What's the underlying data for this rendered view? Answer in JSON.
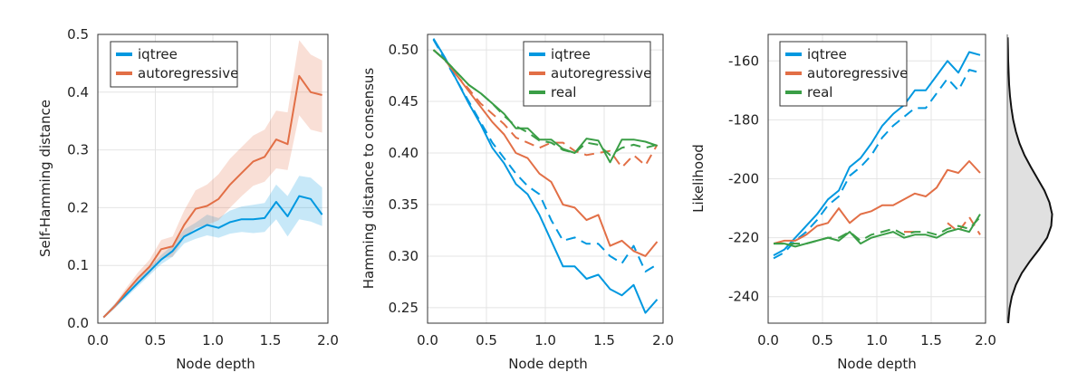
{
  "chart_data": [
    {
      "type": "line",
      "xlabel": "Node depth",
      "ylabel": "Self-Hamming distance",
      "xlim": [
        0.0,
        2.0
      ],
      "ylim": [
        0.0,
        0.5
      ],
      "xticks": [
        "0.0",
        "0.5",
        "1.0",
        "1.5",
        "2.0"
      ],
      "yticks": [
        "0.0",
        "0.1",
        "0.2",
        "0.3",
        "0.4",
        "0.5"
      ],
      "xtick_values": [
        0.0,
        0.5,
        1.0,
        1.5,
        2.0
      ],
      "ytick_values": [
        0.0,
        0.1,
        0.2,
        0.3,
        0.4,
        0.5
      ],
      "legend_position": "top-left",
      "x": [
        0.05,
        0.15,
        0.25,
        0.35,
        0.45,
        0.55,
        0.65,
        0.75,
        0.85,
        0.95,
        1.05,
        1.15,
        1.25,
        1.35,
        1.45,
        1.55,
        1.65,
        1.75,
        1.85,
        1.95
      ],
      "series": [
        {
          "name": "iqtree",
          "color": "#0098e0",
          "style": "solid",
          "values": [
            0.01,
            0.03,
            0.05,
            0.07,
            0.09,
            0.11,
            0.125,
            0.15,
            0.16,
            0.17,
            0.165,
            0.175,
            0.18,
            0.18,
            0.182,
            0.21,
            0.185,
            0.22,
            0.215,
            0.188
          ],
          "lower": [
            0.008,
            0.026,
            0.045,
            0.064,
            0.083,
            0.102,
            0.115,
            0.138,
            0.146,
            0.152,
            0.148,
            0.155,
            0.158,
            0.156,
            0.158,
            0.18,
            0.15,
            0.18,
            0.176,
            0.168
          ],
          "upper": [
            0.012,
            0.034,
            0.055,
            0.076,
            0.097,
            0.118,
            0.135,
            0.162,
            0.174,
            0.188,
            0.182,
            0.195,
            0.202,
            0.205,
            0.208,
            0.24,
            0.22,
            0.255,
            0.252,
            0.235
          ]
        },
        {
          "name": "autoregressive",
          "color": "#e26f46",
          "style": "solid",
          "values": [
            0.01,
            0.03,
            0.055,
            0.078,
            0.098,
            0.128,
            0.133,
            0.17,
            0.198,
            0.203,
            0.215,
            0.24,
            0.26,
            0.28,
            0.288,
            0.318,
            0.31,
            0.428,
            0.4,
            0.395
          ],
          "lower": [
            0.008,
            0.026,
            0.048,
            0.068,
            0.086,
            0.112,
            0.115,
            0.148,
            0.165,
            0.17,
            0.178,
            0.2,
            0.22,
            0.238,
            0.245,
            0.268,
            0.265,
            0.36,
            0.335,
            0.33
          ],
          "upper": [
            0.012,
            0.034,
            0.062,
            0.088,
            0.11,
            0.144,
            0.15,
            0.195,
            0.23,
            0.24,
            0.258,
            0.285,
            0.305,
            0.325,
            0.335,
            0.368,
            0.365,
            0.49,
            0.465,
            0.455
          ]
        }
      ]
    },
    {
      "type": "line",
      "xlabel": "Node depth",
      "ylabel": "Hamming distance to consensus",
      "xlim": [
        0.0,
        2.0
      ],
      "ylim": [
        0.235,
        0.515
      ],
      "xticks": [
        "0.0",
        "0.5",
        "1.0",
        "1.5",
        "2.0"
      ],
      "yticks": [
        "0.25",
        "0.30",
        "0.35",
        "0.40",
        "0.45",
        "0.50"
      ],
      "xtick_values": [
        0.0,
        0.5,
        1.0,
        1.5,
        2.0
      ],
      "ytick_values": [
        0.25,
        0.3,
        0.35,
        0.4,
        0.45,
        0.5
      ],
      "legend_position": "top-right",
      "x": [
        0.05,
        0.15,
        0.25,
        0.35,
        0.45,
        0.55,
        0.65,
        0.75,
        0.85,
        0.95,
        1.05,
        1.15,
        1.25,
        1.35,
        1.45,
        1.55,
        1.65,
        1.75,
        1.85,
        1.95
      ],
      "series": [
        {
          "name": "iqtree",
          "color": "#0098e0",
          "style": "solid",
          "values": [
            0.511,
            0.492,
            0.47,
            0.448,
            0.428,
            0.405,
            0.39,
            0.37,
            0.36,
            0.34,
            0.315,
            0.29,
            0.29,
            0.278,
            0.282,
            0.268,
            0.262,
            0.272,
            0.245,
            0.258
          ]
        },
        {
          "name": "",
          "color": "#0098e0",
          "style": "dashed",
          "values": [
            0.51,
            0.49,
            0.47,
            0.45,
            0.43,
            0.41,
            0.395,
            0.38,
            0.368,
            0.36,
            0.335,
            0.315,
            0.318,
            0.312,
            0.312,
            0.3,
            0.293,
            0.31,
            0.285,
            0.292
          ]
        },
        {
          "name": "autoregressive",
          "color": "#e26f46",
          "style": "solid",
          "values": [
            0.5,
            0.49,
            0.475,
            0.46,
            0.445,
            0.43,
            0.418,
            0.4,
            0.395,
            0.38,
            0.372,
            0.35,
            0.347,
            0.335,
            0.34,
            0.31,
            0.315,
            0.305,
            0.3,
            0.314
          ]
        },
        {
          "name": "",
          "color": "#e26f46",
          "style": "dashed",
          "values": [
            0.5,
            0.49,
            0.475,
            0.462,
            0.448,
            0.438,
            0.428,
            0.415,
            0.41,
            0.405,
            0.41,
            0.41,
            0.402,
            0.398,
            0.4,
            0.402,
            0.386,
            0.398,
            0.388,
            0.408
          ]
        },
        {
          "name": "real",
          "color": "#3a9e46",
          "style": "solid",
          "values": [
            0.5,
            0.49,
            0.478,
            0.466,
            0.458,
            0.448,
            0.438,
            0.424,
            0.424,
            0.413,
            0.413,
            0.404,
            0.4,
            0.414,
            0.412,
            0.391,
            0.413,
            0.413,
            0.411,
            0.407
          ]
        },
        {
          "name": "",
          "color": "#3a9e46",
          "style": "dashed",
          "values": [
            0.5,
            0.49,
            0.478,
            0.466,
            0.458,
            0.448,
            0.436,
            0.426,
            0.42,
            0.412,
            0.41,
            0.403,
            0.4,
            0.41,
            0.408,
            0.398,
            0.405,
            0.408,
            0.405,
            0.408
          ]
        }
      ]
    },
    {
      "type": "line",
      "xlabel": "Node depth",
      "ylabel": "Likelihood",
      "xlim": [
        0.0,
        2.0
      ],
      "ylim": [
        -249,
        -151
      ],
      "xticks": [
        "0.0",
        "0.5",
        "1.0",
        "1.5",
        "2.0"
      ],
      "yticks": [
        "-240",
        "-220",
        "-200",
        "-180",
        "-160"
      ],
      "xtick_values": [
        0.0,
        0.5,
        1.0,
        1.5,
        2.0
      ],
      "ytick_values": [
        -240,
        -220,
        -200,
        -180,
        -160
      ],
      "legend_position": "top-left",
      "x": [
        0.05,
        0.15,
        0.25,
        0.35,
        0.45,
        0.55,
        0.65,
        0.75,
        0.85,
        0.95,
        1.05,
        1.15,
        1.25,
        1.35,
        1.45,
        1.55,
        1.65,
        1.75,
        1.85,
        1.95
      ],
      "series": [
        {
          "name": "iqtree",
          "color": "#0098e0",
          "style": "solid",
          "values": [
            -226,
            -224,
            -220,
            -216,
            -212,
            -207,
            -204,
            -196,
            -193,
            -188,
            -182,
            -178,
            -175,
            -170,
            -170,
            -165,
            -160,
            -164,
            -157,
            -158
          ]
        },
        {
          "name": "",
          "color": "#0098e0",
          "style": "dashed",
          "values": [
            -227,
            -225,
            -221,
            -218,
            -214,
            -209,
            -206,
            -199,
            -196,
            -192,
            -186,
            -182,
            -179,
            -176,
            -176,
            -171,
            -166,
            -170,
            -163,
            -164
          ]
        },
        {
          "name": "autoregressive",
          "color": "#e26f46",
          "style": "solid",
          "values": [
            -222,
            -221,
            -221,
            -219,
            -216,
            -215,
            -210,
            -215,
            -212,
            -211,
            -209,
            -209,
            -207,
            -205,
            -206,
            -203,
            -197,
            -198,
            -194,
            -198
          ]
        },
        {
          "name": "",
          "color": "#e26f46",
          "style": "dashed",
          "values": [
            null,
            null,
            null,
            null,
            null,
            null,
            null,
            null,
            null,
            null,
            null,
            null,
            -218,
            -218,
            null,
            null,
            -215,
            -218,
            -213,
            -219
          ]
        },
        {
          "name": "real",
          "color": "#3a9e46",
          "style": "solid",
          "values": [
            -222,
            -222,
            -223,
            -222,
            -221,
            -220,
            -221,
            -218,
            -222,
            -220,
            -219,
            -218,
            -220,
            -219,
            -219,
            -220,
            -218,
            -217,
            -218,
            -212
          ]
        },
        {
          "name": "",
          "color": "#3a9e46",
          "style": "dashed",
          "values": [
            -222,
            -222,
            -222,
            -222,
            -221,
            -220,
            -220,
            -218,
            -221,
            -219,
            -218,
            -217,
            -219,
            -218,
            -218,
            -219,
            -217,
            -216,
            -217,
            -213
          ]
        }
      ],
      "marginal": {
        "type": "density",
        "color": "#e0e0e0",
        "y": [
          -249,
          -244,
          -240,
          -236,
          -232,
          -228,
          -224,
          -220,
          -216,
          -212,
          -208,
          -204,
          -200,
          -196,
          -192,
          -188,
          -184,
          -180,
          -176,
          -172,
          -168,
          -164,
          -160,
          -156,
          -152
        ],
        "density": [
          0.02,
          0.05,
          0.1,
          0.19,
          0.32,
          0.5,
          0.7,
          0.88,
          0.97,
          0.99,
          0.93,
          0.82,
          0.67,
          0.52,
          0.38,
          0.27,
          0.19,
          0.13,
          0.09,
          0.06,
          0.04,
          0.03,
          0.02,
          0.015,
          0.01
        ]
      }
    }
  ]
}
